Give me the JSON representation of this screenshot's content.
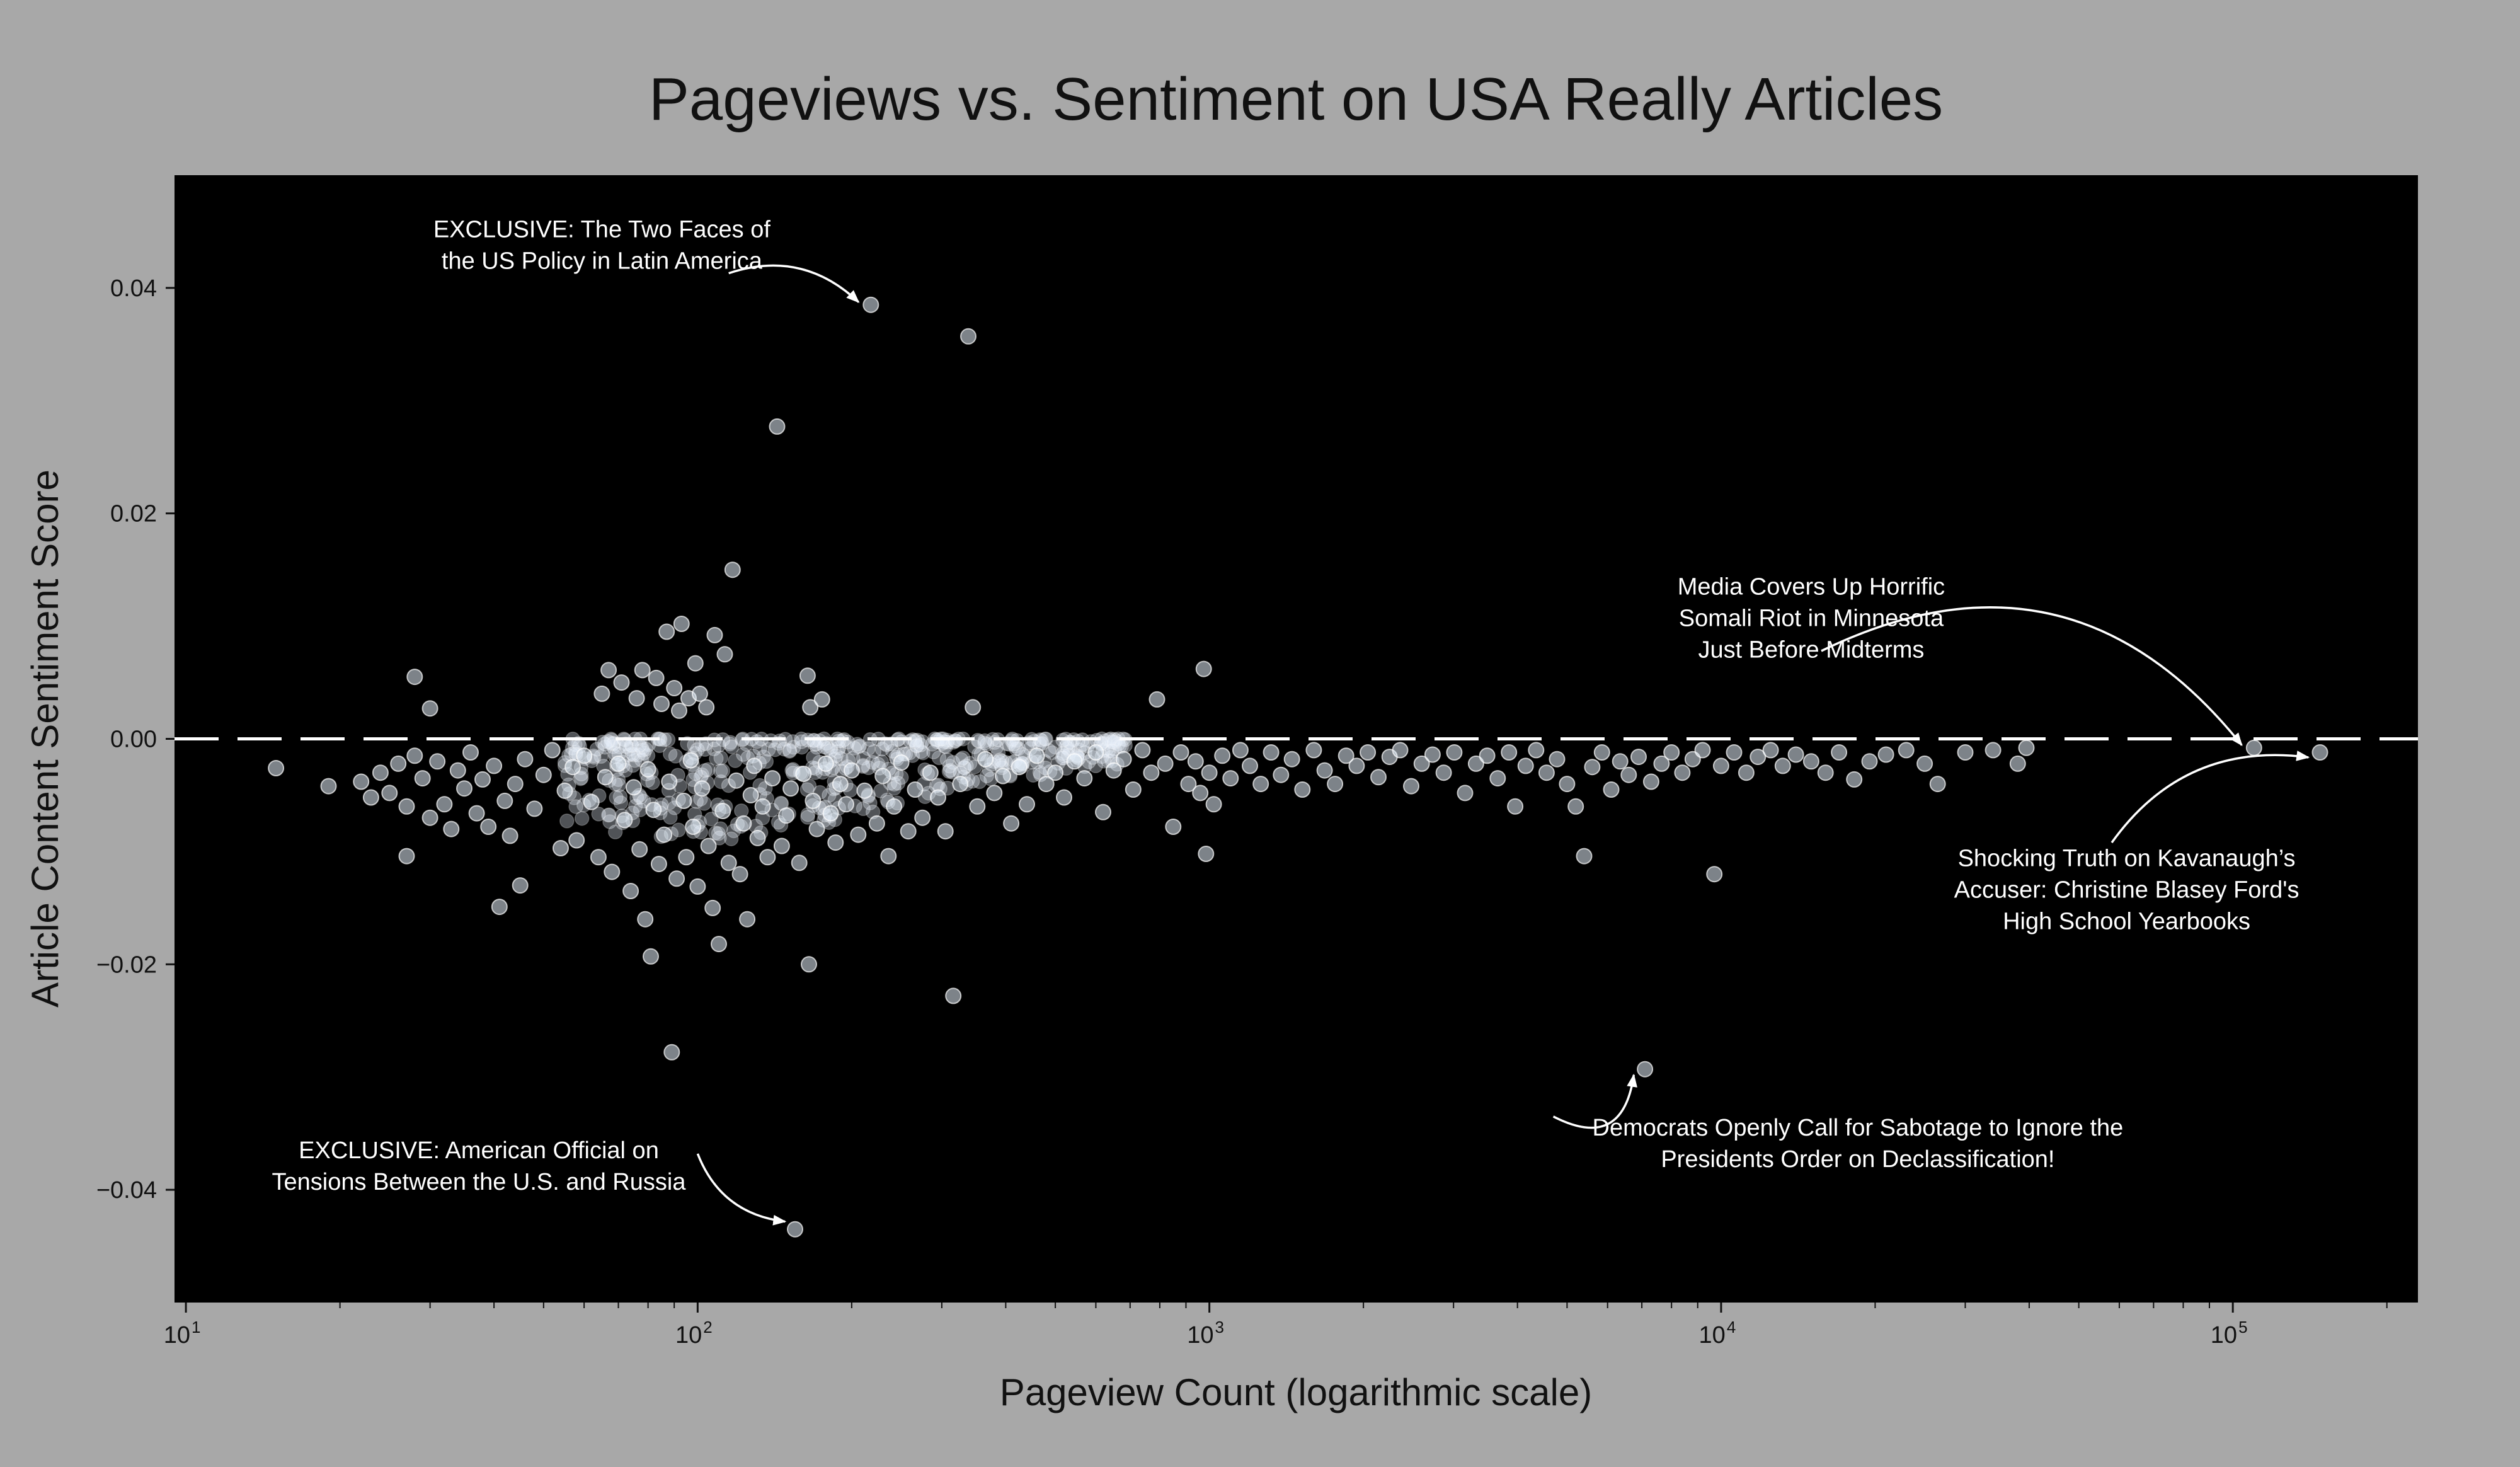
{
  "colors": {
    "page_background": "#a8a8a8",
    "plot_background": "#000000",
    "point_fill": "#e4eefa",
    "annotation_text": "#ffffff",
    "axis_text": "#111111"
  },
  "chart_data": {
    "type": "scatter",
    "title": "Pageviews vs. Sentiment on USA Really Articles",
    "xlabel": "Pageview Count (logarithmic scale)",
    "ylabel": "Article Content Sentiment Score",
    "x_scale": "log",
    "xlim": [
      9.5,
      230000
    ],
    "ylim": [
      -0.05,
      0.05
    ],
    "x_ticks": [
      {
        "value": 10,
        "base": "10",
        "exp": "1"
      },
      {
        "value": 100,
        "base": "10",
        "exp": "2"
      },
      {
        "value": 1000,
        "base": "10",
        "exp": "3"
      },
      {
        "value": 10000,
        "base": "10",
        "exp": "4"
      },
      {
        "value": 100000,
        "base": "10",
        "exp": "5"
      }
    ],
    "y_ticks": [
      {
        "value": 0.04,
        "label": "0.04"
      },
      {
        "value": 0.02,
        "label": "0.02"
      },
      {
        "value": 0.0,
        "label": "0.00"
      },
      {
        "value": -0.02,
        "label": "−0.02"
      },
      {
        "value": -0.04,
        "label": "−0.04"
      }
    ],
    "reference_line": {
      "y": 0.0,
      "style": "dashed"
    },
    "grid": false,
    "points": [
      [
        15,
        -0.0026
      ],
      [
        19,
        -0.0042
      ],
      [
        22,
        -0.0038
      ],
      [
        23,
        -0.0052
      ],
      [
        24,
        -0.003
      ],
      [
        25,
        -0.0048
      ],
      [
        26,
        -0.0022
      ],
      [
        27,
        -0.006
      ],
      [
        27,
        -0.0104
      ],
      [
        28,
        0.0055
      ],
      [
        28,
        -0.0015
      ],
      [
        29,
        -0.0035
      ],
      [
        30,
        -0.007
      ],
      [
        30,
        0.0027
      ],
      [
        31,
        -0.002
      ],
      [
        32,
        -0.0058
      ],
      [
        33,
        -0.008
      ],
      [
        34,
        -0.0028
      ],
      [
        35,
        -0.0044
      ],
      [
        36,
        -0.0012
      ],
      [
        37,
        -0.0066
      ],
      [
        38,
        -0.0036
      ],
      [
        39,
        -0.0078
      ],
      [
        40,
        -0.0024
      ],
      [
        41,
        -0.0149
      ],
      [
        42,
        -0.0055
      ],
      [
        43,
        -0.0086
      ],
      [
        44,
        -0.004
      ],
      [
        45,
        -0.013
      ],
      [
        46,
        -0.0018
      ],
      [
        48,
        -0.0062
      ],
      [
        50,
        -0.0032
      ],
      [
        52,
        -0.001
      ],
      [
        54,
        -0.0097
      ],
      [
        55,
        -0.0046
      ],
      [
        57,
        -0.0025
      ],
      [
        58,
        -0.009
      ],
      [
        60,
        -0.0015
      ],
      [
        62,
        -0.0056
      ],
      [
        64,
        -0.0105
      ],
      [
        65,
        0.004
      ],
      [
        66,
        -0.0034
      ],
      [
        67,
        0.0061
      ],
      [
        68,
        -0.0118
      ],
      [
        70,
        -0.0022
      ],
      [
        71,
        0.005
      ],
      [
        72,
        -0.0072
      ],
      [
        74,
        -0.0135
      ],
      [
        75,
        -0.0043
      ],
      [
        76,
        0.0036
      ],
      [
        77,
        -0.0098
      ],
      [
        78,
        0.0061
      ],
      [
        79,
        -0.016
      ],
      [
        80,
        -0.0027
      ],
      [
        81,
        -0.0193
      ],
      [
        82,
        -0.0063
      ],
      [
        83,
        0.0054
      ],
      [
        84,
        -0.0111
      ],
      [
        85,
        0.0031
      ],
      [
        86,
        -0.0085
      ],
      [
        87,
        0.0095
      ],
      [
        88,
        -0.0038
      ],
      [
        89,
        -0.0278
      ],
      [
        90,
        0.0045
      ],
      [
        91,
        -0.0124
      ],
      [
        92,
        0.0025
      ],
      [
        93,
        0.0102
      ],
      [
        94,
        -0.0055
      ],
      [
        95,
        -0.0105
      ],
      [
        96,
        0.0036
      ],
      [
        97,
        -0.0019
      ],
      [
        98,
        -0.0078
      ],
      [
        99,
        0.0067
      ],
      [
        100,
        -0.0131
      ],
      [
        101,
        0.004
      ],
      [
        102,
        -0.0044
      ],
      [
        104,
        0.0028
      ],
      [
        105,
        -0.0095
      ],
      [
        107,
        -0.015
      ],
      [
        108,
        0.0092
      ],
      [
        110,
        -0.0182
      ],
      [
        112,
        -0.0064
      ],
      [
        113,
        0.0075
      ],
      [
        115,
        -0.011
      ],
      [
        117,
        0.015
      ],
      [
        119,
        -0.0037
      ],
      [
        121,
        -0.012
      ],
      [
        123,
        -0.0075
      ],
      [
        125,
        -0.016
      ],
      [
        127,
        -0.005
      ],
      [
        129,
        -0.0024
      ],
      [
        131,
        -0.0088
      ],
      [
        134,
        -0.006
      ],
      [
        137,
        -0.0105
      ],
      [
        140,
        -0.0035
      ],
      [
        143,
        0.0277
      ],
      [
        146,
        -0.0095
      ],
      [
        149,
        -0.0068
      ],
      [
        152,
        -0.0044
      ],
      [
        155,
        -0.0435
      ],
      [
        158,
        -0.011
      ],
      [
        161,
        -0.0031
      ],
      [
        164,
        0.0056
      ],
      [
        165,
        -0.02
      ],
      [
        166,
        0.0028
      ],
      [
        168,
        -0.0055
      ],
      [
        171,
        -0.008
      ],
      [
        175,
        0.0035
      ],
      [
        178,
        -0.0022
      ],
      [
        182,
        -0.0066
      ],
      [
        186,
        -0.0092
      ],
      [
        190,
        -0.004
      ],
      [
        195,
        -0.0058
      ],
      [
        200,
        -0.0028
      ],
      [
        206,
        -0.0085
      ],
      [
        212,
        -0.0046
      ],
      [
        218,
        0.0385
      ],
      [
        224,
        -0.0075
      ],
      [
        230,
        -0.0033
      ],
      [
        236,
        -0.0104
      ],
      [
        242,
        -0.006
      ],
      [
        250,
        -0.0021
      ],
      [
        258,
        -0.0082
      ],
      [
        266,
        -0.0045
      ],
      [
        275,
        -0.007
      ],
      [
        285,
        -0.003
      ],
      [
        295,
        -0.0052
      ],
      [
        305,
        -0.0082
      ],
      [
        316,
        -0.0228
      ],
      [
        326,
        -0.004
      ],
      [
        338,
        0.0357
      ],
      [
        345,
        0.0028
      ],
      [
        352,
        -0.006
      ],
      [
        365,
        -0.0018
      ],
      [
        380,
        -0.0048
      ],
      [
        395,
        -0.0033
      ],
      [
        410,
        -0.0075
      ],
      [
        425,
        -0.0025
      ],
      [
        440,
        -0.0058
      ],
      [
        460,
        -0.0015
      ],
      [
        480,
        -0.004
      ],
      [
        500,
        -0.003
      ],
      [
        520,
        -0.0052
      ],
      [
        545,
        -0.002
      ],
      [
        570,
        -0.0035
      ],
      [
        600,
        -0.0012
      ],
      [
        620,
        -0.0065
      ],
      [
        650,
        -0.0028
      ],
      [
        680,
        -0.0018
      ],
      [
        710,
        -0.0045
      ],
      [
        740,
        -0.001
      ],
      [
        770,
        -0.003
      ],
      [
        790,
        0.0035
      ],
      [
        820,
        -0.0022
      ],
      [
        850,
        -0.0078
      ],
      [
        880,
        -0.0012
      ],
      [
        910,
        -0.004
      ],
      [
        940,
        -0.002
      ],
      [
        960,
        -0.0048
      ],
      [
        975,
        0.0062
      ],
      [
        985,
        -0.0102
      ],
      [
        1000,
        -0.003
      ],
      [
        1020,
        -0.0058
      ],
      [
        1060,
        -0.0015
      ],
      [
        1100,
        -0.0035
      ],
      [
        1150,
        -0.001
      ],
      [
        1200,
        -0.0024
      ],
      [
        1260,
        -0.004
      ],
      [
        1320,
        -0.0012
      ],
      [
        1380,
        -0.0032
      ],
      [
        1450,
        -0.0018
      ],
      [
        1520,
        -0.0045
      ],
      [
        1600,
        -0.001
      ],
      [
        1680,
        -0.0028
      ],
      [
        1760,
        -0.004
      ],
      [
        1850,
        -0.0015
      ],
      [
        1940,
        -0.0024
      ],
      [
        2040,
        -0.0012
      ],
      [
        2140,
        -0.0034
      ],
      [
        2250,
        -0.0016
      ],
      [
        2360,
        -0.001
      ],
      [
        2480,
        -0.0042
      ],
      [
        2600,
        -0.0022
      ],
      [
        2730,
        -0.0014
      ],
      [
        2870,
        -0.003
      ],
      [
        3010,
        -0.0012
      ],
      [
        3160,
        -0.0048
      ],
      [
        3320,
        -0.0022
      ],
      [
        3490,
        -0.0015
      ],
      [
        3660,
        -0.0035
      ],
      [
        3850,
        -0.0012
      ],
      [
        3960,
        -0.006
      ],
      [
        4150,
        -0.0024
      ],
      [
        4350,
        -0.001
      ],
      [
        4560,
        -0.003
      ],
      [
        4780,
        -0.0018
      ],
      [
        5000,
        -0.004
      ],
      [
        5200,
        -0.006
      ],
      [
        5400,
        -0.0104
      ],
      [
        5600,
        -0.0025
      ],
      [
        5850,
        -0.0012
      ],
      [
        6100,
        -0.0045
      ],
      [
        6350,
        -0.002
      ],
      [
        6600,
        -0.0032
      ],
      [
        6900,
        -0.0016
      ],
      [
        7100,
        -0.0293
      ],
      [
        7300,
        -0.0038
      ],
      [
        7650,
        -0.0022
      ],
      [
        8000,
        -0.0012
      ],
      [
        8400,
        -0.003
      ],
      [
        8800,
        -0.0018
      ],
      [
        9200,
        -0.001
      ],
      [
        9700,
        -0.012
      ],
      [
        10000,
        -0.0024
      ],
      [
        10600,
        -0.0012
      ],
      [
        11200,
        -0.003
      ],
      [
        11800,
        -0.0016
      ],
      [
        12500,
        -0.001
      ],
      [
        13200,
        -0.0024
      ],
      [
        14000,
        -0.0014
      ],
      [
        15000,
        -0.002
      ],
      [
        16000,
        -0.003
      ],
      [
        17000,
        -0.0012
      ],
      [
        18200,
        -0.0036
      ],
      [
        19500,
        -0.002
      ],
      [
        21000,
        -0.0014
      ],
      [
        23000,
        -0.001
      ],
      [
        25000,
        -0.0022
      ],
      [
        26500,
        -0.004
      ],
      [
        30000,
        -0.0012
      ],
      [
        34000,
        -0.001
      ],
      [
        38000,
        -0.0022
      ],
      [
        39500,
        -0.0008
      ],
      [
        110000,
        -0.0008
      ],
      [
        148000,
        -0.0012
      ]
    ],
    "annotations": [
      {
        "lines": [
          "EXCLUSIVE: The Two Faces of",
          "the US Policy in Latin America"
        ],
        "point": [
          218,
          0.0385
        ],
        "text_x": 65,
        "text_y": 0.0445,
        "arrow_from": [
          115,
          0.0413
        ],
        "rad": 0.3
      },
      {
        "lines": [
          "Media Covers Up Horrific",
          "Somali Riot in Minnesota",
          "Just Before Midterms"
        ],
        "point": [
          110000,
          -0.0008
        ],
        "text_x": 15000,
        "text_y": 0.0128,
        "arrow_from": [
          15700,
          0.0078
        ],
        "rad": 0.4
      },
      {
        "lines": [
          "Shocking Truth on Kavanaugh’s",
          "Accuser: Christine Blasey Ford's",
          "High School Yearbooks"
        ],
        "point": [
          148000,
          -0.0012
        ],
        "text_x": 62000,
        "text_y": -0.0113,
        "arrow_from": [
          58000,
          -0.0092
        ],
        "rad": 0.3
      },
      {
        "lines": [
          "Democrats Openly Call for Sabotage to Ignore the",
          "Presidents Order on Declassification!"
        ],
        "point": [
          7100,
          -0.0293
        ],
        "text_x": 18500,
        "text_y": -0.0352,
        "arrow_from": [
          4700,
          -0.0335
        ],
        "rad": -0.7
      },
      {
        "lines": [
          "EXCLUSIVE: American Official on",
          "Tensions Between the U.S. and Russia"
        ],
        "point": [
          155,
          -0.0435
        ],
        "text_x": 38000000000,
        "text_y": -0.0372,
        "arrow_from": [
          100,
          -0.0368
        ],
        "rad": -0.3
      }
    ]
  }
}
